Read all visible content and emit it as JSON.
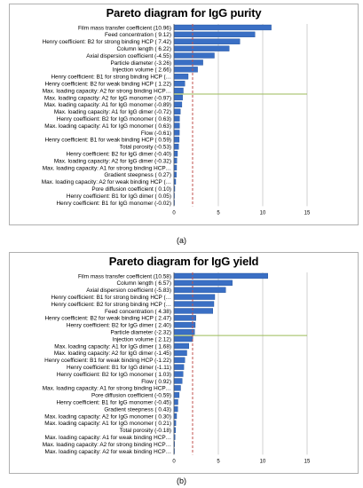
{
  "panels": [
    {
      "title": "Pareto diagram for IgG purity",
      "label": "(a)"
    },
    {
      "title": "Pareto diagram for IgG yield",
      "label": "(b)"
    }
  ],
  "colors": {
    "bar": "#3a6fc4",
    "bar_edge": "#1f4f99",
    "grid": "#bfbfbf",
    "threshold_line": "#c0504d",
    "cutoff_line": "#9bbb59"
  },
  "chart_data": [
    {
      "type": "bar",
      "orientation": "horizontal",
      "title": "Pareto diagram for IgG purity",
      "xlim": [
        0,
        15
      ],
      "xticks": [
        0,
        5,
        10,
        15
      ],
      "threshold": 2.1,
      "cutoff_after_index": 9,
      "grid": true,
      "categories": [
        "Film mass transfer coefficient (10.96)",
        "Feed concentration ( 9.12)",
        "Henry coefficient: B2 for strong binding HCP ( 7.42)",
        "Column length ( 6.22)",
        "Axial dispersion coefficient (-4.55)",
        "Particle diameter (-3.26)",
        "Injection volume ( 2.66)",
        "Henry coefficient: B1 for strong binding HCP (…",
        "Henry coefficient: B2 for weak binding HCP ( 1.22)",
        "Max. loading capacity: A2 for strong binding HCP…",
        "Max. loading capacity: A2 for IgG monomer (-0.97)",
        "Max. loading capacity: A1 for IgG monomer (-0.89)",
        "Max. loading capacity: A1 for IgG dimer (-0.72)",
        "Henry coefficient: B2 for IgG monomer ( 0.63)",
        "Max. loading capacity: A1 for IgG monomer ( 0.63)",
        "Flow (-0.61)",
        "Henry coefficient: B1 for weak binding HCP ( 0.59)",
        "Total porosity (-0.53)",
        "Henry coefficient: B2 for IgG dimer (-0.40)",
        "Max. loading capacity: A2 for IgG dimer (-0.32)",
        "Max. loading capacity: A1 for strong binding HCP…",
        "Gradient steepness ( 0.27)",
        "Max. loading capacity: A2 for weak binding HCP (…",
        "Pore diffusion coefficient ( 0.10)",
        "Henry coefficient: B1 for IgG dimer ( 0.05)",
        "Henry coefficient: B1 for IgG monomer (-0.02)"
      ],
      "values": [
        10.96,
        9.12,
        7.42,
        6.22,
        4.55,
        3.26,
        2.66,
        1.6,
        1.22,
        1.05,
        0.97,
        0.89,
        0.72,
        0.63,
        0.63,
        0.61,
        0.59,
        0.53,
        0.4,
        0.32,
        0.3,
        0.27,
        0.2,
        0.1,
        0.05,
        0.02
      ]
    },
    {
      "type": "bar",
      "orientation": "horizontal",
      "title": "Pareto diagram for IgG yield",
      "xlim": [
        0,
        15
      ],
      "xticks": [
        0,
        5,
        10,
        15
      ],
      "threshold": 2.1,
      "cutoff_after_index": 8,
      "grid": true,
      "categories": [
        "Film mass transfer coefficient (10.58)",
        "Column length ( 6.57)",
        "Axial dispersion coefficient (-5.83)",
        "Henry coefficient: B1 for strong binding HCP (…",
        "Henry coefficient: B2 for strong binding HCP (…",
        "Feed concentration ( 4.38)",
        "Henry coefficient: B2 for weak binding HCP ( 2.47)",
        "Henry coefficient: B2 for IgG dimer ( 2.40)",
        "Particle diameter (-2.32)",
        "Injection volume ( 2.12)",
        "Max. loading capacity: A1 for IgG dimer ( 1.68)",
        "Max. loading capacity: A2 for IgG dimer (-1.45)",
        "Henry coefficient: B1 for weak binding HCP (-1.22)",
        "Henry coefficient: B1 for IgG dimer (-1.11)",
        "Henry coefficient: B2 for IgG monomer ( 1.03)",
        "Flow ( 0.92)",
        "Max. loading capacity: A1 for strong binding HCP…",
        "Pore diffusion coefficient (-0.59)",
        "Henry coefficient: B1 for IgG monomer (-0.45)",
        "Gradient steepness ( 0.43)",
        "Max. loading capacity: A2 for IgG monomer ( 0.30)",
        "Max. loading capacity: A1 for IgG monomer ( 0.21)",
        "Total porosity (-0.18)",
        "Max. loading capacity: A1 for weak binding HCP…",
        "Max. loading capacity: A2 for strong binding HCP…",
        "Max. loading capacity: A2 for weak binding HCP…"
      ],
      "values": [
        10.58,
        6.57,
        5.83,
        4.6,
        4.5,
        4.38,
        2.47,
        2.4,
        2.32,
        2.12,
        1.68,
        1.45,
        1.22,
        1.11,
        1.03,
        0.92,
        0.75,
        0.59,
        0.45,
        0.43,
        0.3,
        0.21,
        0.18,
        0.12,
        0.08,
        0.05
      ]
    }
  ]
}
